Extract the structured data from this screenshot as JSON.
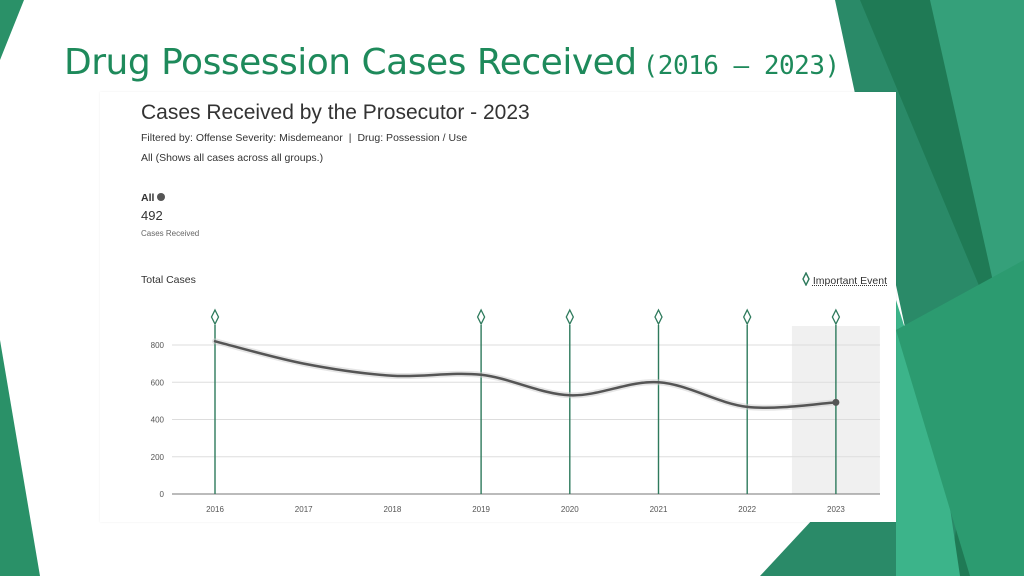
{
  "slide": {
    "title": "Drug Possession Cases Received",
    "title_years": "(2016 – 2023)"
  },
  "colors": {
    "accent_green": "#1e8a5b",
    "event_line": "#2e7a5c",
    "series_line": "#555555",
    "highlight_band": "#f0f0f0"
  },
  "card": {
    "title": "Cases Received by the Prosecutor - 2023",
    "filter_prefix": "Filtered by: Offense Severity: Misdemeanor",
    "filter_separator": "|",
    "filter_drug": "Drug: Possession / Use",
    "all_description": "All (Shows all cases across all groups.)",
    "kpi_label": "All",
    "kpi_value": "492",
    "kpi_caption": "Cases Received",
    "total_label": "Total Cases",
    "legend_label": "Important Event"
  },
  "chart_data": {
    "type": "line",
    "x": [
      "2016",
      "2017",
      "2018",
      "2019",
      "2020",
      "2021",
      "2022",
      "2023"
    ],
    "series": [
      {
        "values": [
          820,
          700,
          635,
          640,
          530,
          600,
          468,
          492
        ]
      }
    ],
    "y_ticks": [
      0,
      200,
      400,
      600,
      800
    ],
    "ylim": [
      0,
      900
    ],
    "important_events": [
      "2016",
      "2019",
      "2020",
      "2021",
      "2022",
      "2023"
    ],
    "highlight_category": "2023",
    "grid": true,
    "legend_position": "top-right"
  }
}
